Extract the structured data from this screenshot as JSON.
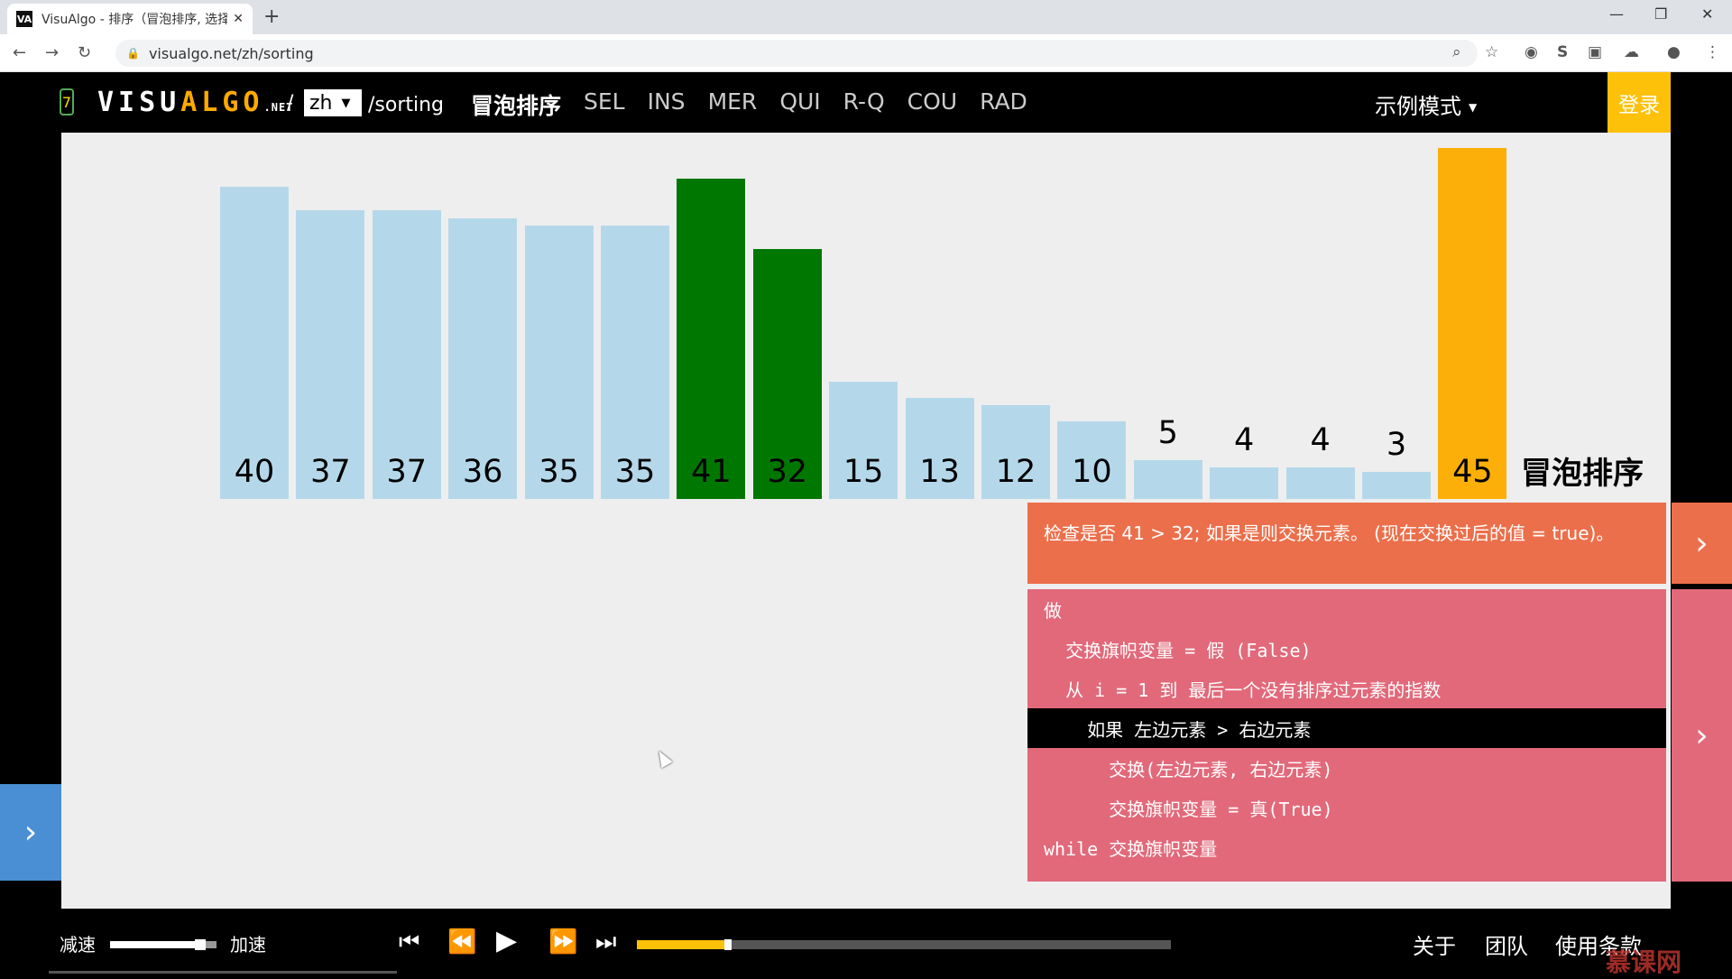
{
  "browser": {
    "tab_title": "VisuAlgo - 排序（冒泡排序, 选择",
    "favicon_label": "VA",
    "new_tab_icon": "plus-icon",
    "url": "visualgo.net/zh/sorting"
  },
  "header": {
    "step_counter": "7",
    "logo_visu": "VISU",
    "logo_algo": "ALGO",
    "logo_net": ".NET",
    "slash": "/",
    "language": "zh",
    "path": "/sorting",
    "algorithms": [
      "冒泡排序",
      "SEL",
      "INS",
      "MER",
      "QUI",
      "R-Q",
      "COU",
      "RAD"
    ],
    "mode": "示例模式",
    "login": "登录"
  },
  "chart_data": {
    "type": "bar",
    "title": "冒泡排序",
    "values": [
      40,
      37,
      37,
      36,
      35,
      35,
      41,
      32,
      15,
      13,
      12,
      10,
      5,
      4,
      4,
      3,
      45
    ],
    "states": [
      "default",
      "default",
      "default",
      "default",
      "default",
      "default",
      "compare",
      "compare",
      "default",
      "default",
      "default",
      "default",
      "default",
      "default",
      "default",
      "default",
      "sorted"
    ],
    "colors": {
      "default": "#b4d8ea",
      "compare": "#007700",
      "sorted": "#fbaf08"
    }
  },
  "status": {
    "message": "检查是否 41 > 32; 如果是则交换元素。 (现在交换过后的值 = true)。"
  },
  "pseudocode": {
    "lines": [
      "做",
      "  交换旗帜变量 = 假 (False)",
      "  从 i = 1 到 最后一个没有排序过元素的指数",
      "    如果 左边元素 > 右边元素",
      "      交换(左边元素, 右边元素)",
      "      交换旗帜变量 = 真(True)",
      "while 交换旗帜变量"
    ],
    "active_line": 3
  },
  "controls": {
    "slow": "减速",
    "fast": "加速",
    "speed_level": 0.85,
    "progress": 0.17
  },
  "footer": {
    "about": "关于",
    "team": "团队",
    "terms": "使用条款",
    "watermark": "慕课网"
  }
}
